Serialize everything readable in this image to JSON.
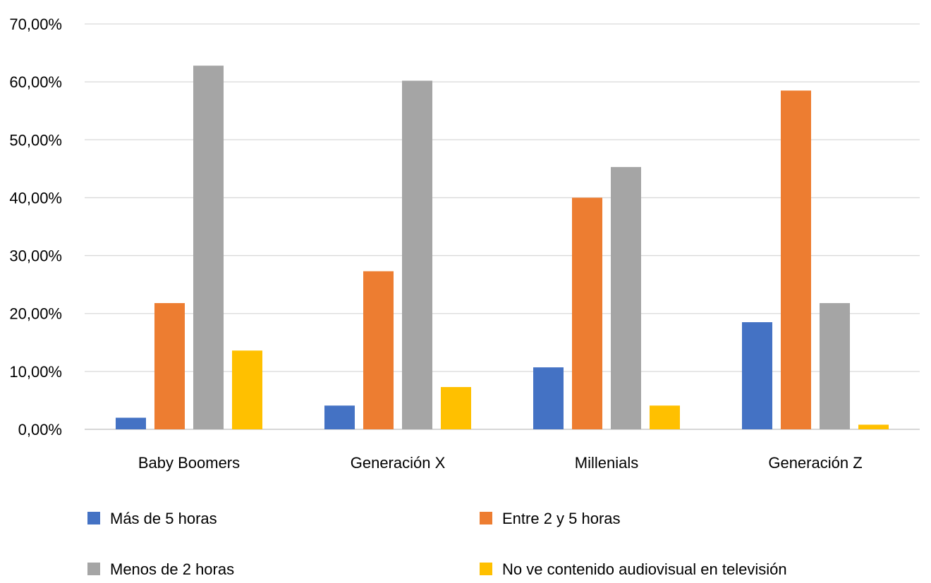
{
  "chart_data": {
    "type": "bar",
    "title": "",
    "xlabel": "",
    "ylabel": "",
    "ylim": [
      0,
      70
    ],
    "y_ticks": [
      "0,00%",
      "10,00%",
      "20,00%",
      "30,00%",
      "40,00%",
      "50,00%",
      "60,00%",
      "70,00%"
    ],
    "grid": true,
    "legend_position": "bottom",
    "categories": [
      "Baby Boomers",
      "Generación X",
      "Millenials",
      "Generación Z"
    ],
    "series": [
      {
        "name": "Más de 5 horas",
        "color": "#4472c4",
        "values": [
          2.0,
          4.1,
          10.7,
          18.5
        ]
      },
      {
        "name": "Entre 2 y 5 horas",
        "color": "#ed7d31",
        "values": [
          21.8,
          27.3,
          40.0,
          58.5
        ]
      },
      {
        "name": "Menos de 2 horas",
        "color": "#a5a5a5",
        "values": [
          62.8,
          60.2,
          45.3,
          21.8
        ]
      },
      {
        "name": "No ve contenido audiovisual en televisión",
        "color": "#ffc000",
        "values": [
          13.6,
          7.3,
          4.1,
          0.8
        ]
      }
    ]
  }
}
